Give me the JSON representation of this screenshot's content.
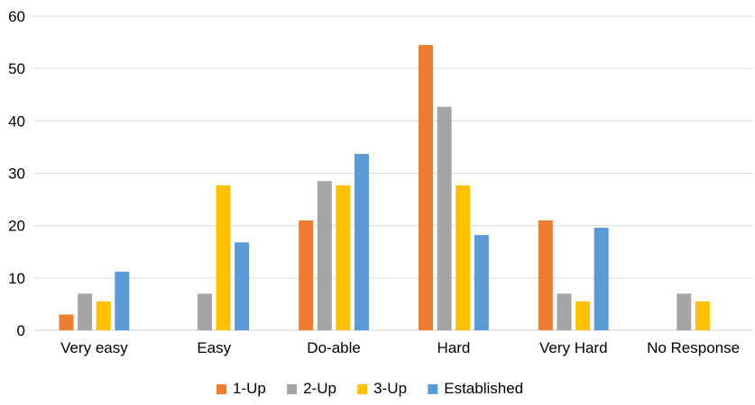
{
  "chart_data": {
    "type": "bar",
    "title": "",
    "xlabel": "",
    "ylabel": "",
    "categories": [
      "Very easy",
      "Easy",
      "Do-able",
      "Hard",
      "Very Hard",
      "No Response"
    ],
    "series": [
      {
        "name": "1-Up",
        "color": "#ED7D31",
        "values": [
          3,
          0,
          21,
          54.5,
          21,
          0
        ]
      },
      {
        "name": "2-Up",
        "color": "#A5A5A5",
        "values": [
          7,
          7,
          28.5,
          42.7,
          7,
          7
        ]
      },
      {
        "name": "3-Up",
        "color": "#FFC000",
        "values": [
          5.5,
          27.7,
          27.7,
          27.7,
          5.5,
          5.5
        ]
      },
      {
        "name": "Established",
        "color": "#5B9BD5",
        "values": [
          11.2,
          16.8,
          33.7,
          18.2,
          19.6,
          0
        ]
      }
    ],
    "ylim": [
      0,
      60
    ],
    "yticks": [
      0,
      10,
      20,
      30,
      40,
      50,
      60
    ],
    "grid": true,
    "legend": "bottom"
  }
}
